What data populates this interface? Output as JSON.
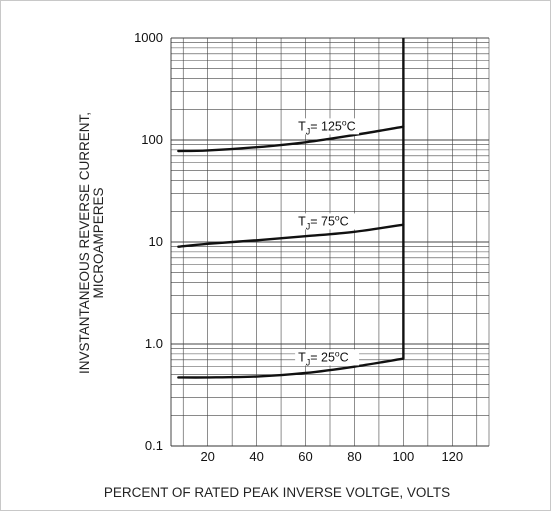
{
  "chart_data": {
    "type": "line",
    "xlabel": "PERCENT OF RATED PEAK INVERSE VOLTGE, VOLTS",
    "ylabel_lines": [
      "INVSTANTANEOUS REVERSE CURRENT,",
      "MICROAMPERES"
    ],
    "x_ticks": [
      20,
      40,
      60,
      80,
      100,
      120
    ],
    "y_ticks": [
      "1000",
      "100",
      "10",
      "1.0",
      "0.1"
    ],
    "y_tick_values": [
      1000,
      100,
      10,
      1,
      0.1
    ],
    "xlim": [
      5,
      135
    ],
    "ylim": [
      0.1,
      1000
    ],
    "y_scale": "log",
    "grid": true,
    "line_color": "#111111",
    "series": [
      {
        "label": {
          "base": "T",
          "sub": "J",
          "eq": "= 125",
          "sup": "o",
          "unit": "C"
        },
        "x": [
          8,
          20,
          40,
          60,
          80,
          100
        ],
        "y": [
          78,
          79,
          85,
          95,
          112,
          135
        ]
      },
      {
        "label": {
          "base": "T",
          "sub": "J",
          "eq": "= 75",
          "sup": "o",
          "unit": "C"
        },
        "x": [
          8,
          20,
          40,
          60,
          80,
          100
        ],
        "y": [
          9,
          9.6,
          10.4,
          11.4,
          12.6,
          14.8
        ]
      },
      {
        "label": {
          "base": "T",
          "sub": "J",
          "eq": "= 25",
          "sup": "o",
          "unit": "C"
        },
        "x": [
          8,
          20,
          40,
          60,
          80,
          100
        ],
        "y": [
          0.47,
          0.47,
          0.48,
          0.52,
          0.6,
          0.72
        ]
      }
    ],
    "breakdown": {
      "x": 100,
      "y_from": 0.72,
      "y_to": 1000
    }
  }
}
